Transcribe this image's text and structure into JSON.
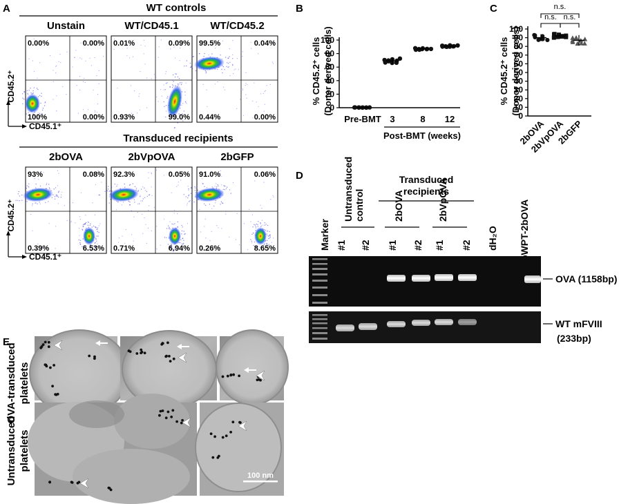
{
  "panels": {
    "A": {
      "label": "A",
      "group1_title": "WT controls",
      "group2_title": "Transduced recipients",
      "y_axis": "CD45.2⁺",
      "x_axis": "CD45.1⁺",
      "plots": [
        {
          "title": "Unstain",
          "q": [
            "0.00%",
            "0.00%",
            "100%",
            "0.00%"
          ],
          "pops": [
            "ll"
          ]
        },
        {
          "title": "WT/CD45.1",
          "q": [
            "0.01%",
            "0.09%",
            "0.93%",
            "99.0%"
          ],
          "pops": [
            "lr"
          ]
        },
        {
          "title": "WT/CD45.2",
          "q": [
            "99.5%",
            "0.04%",
            "0.44%",
            "0.00%"
          ],
          "pops": [
            "ul"
          ]
        },
        {
          "title": "2bOVA",
          "q": [
            "93%",
            "0.08%",
            "0.39%",
            "6.53%"
          ],
          "pops": [
            "ul",
            "lr"
          ]
        },
        {
          "title": "2bVpOVA",
          "q": [
            "92.3%",
            "0.05%",
            "0.71%",
            "6.94%"
          ],
          "pops": [
            "ul",
            "lr"
          ]
        },
        {
          "title": "2bGFP",
          "q": [
            "91.0%",
            "0.06%",
            "0.26%",
            "8.65%"
          ],
          "pops": [
            "ul",
            "lr"
          ]
        }
      ]
    },
    "B": {
      "label": "B"
    },
    "C": {
      "label": "C"
    },
    "D": {
      "label": "D",
      "marker": "Marker",
      "group_untransduced": "Untransduced control",
      "group_transduced": "Transduced recipients",
      "sub_2bova": "2bOVA",
      "sub_2bvpova": "2bVpOVA",
      "lanes": [
        "#1",
        "#2",
        "#1",
        "#2",
        "#1",
        "#2"
      ],
      "dh2o": "dH₂O",
      "pwpt": "pWPT-2bOVA",
      "band1": "OVA (1158bp)",
      "band2a": "WT mFVIII",
      "band2b": "(233bp)"
    },
    "E": {
      "label": "E",
      "row1_line1": "OVA-transduced",
      "row1_line2": "platelets",
      "row2_line1": "Untransduced",
      "row2_line2": "platelets",
      "scale_bar": "100 nm"
    }
  },
  "chart_data": [
    {
      "type": "scatter",
      "panel": "B",
      "ylabel": "% CD45.2⁺ cells (Donor derived cells)",
      "ylabel_line1": "% CD45.2⁺ cells",
      "ylabel_line2": "(Donor derived cells)",
      "xlabel": "Post-BMT (weeks)",
      "categories": [
        "Pre-BMT",
        "3",
        "8",
        "12"
      ],
      "yticks": [
        "0",
        "20",
        "40",
        "60",
        "80",
        "100"
      ],
      "ylim": [
        0,
        100
      ],
      "series": [
        {
          "values": [
            0.3,
            69,
            87,
            91
          ]
        }
      ],
      "error": [
        0.2,
        5,
        2,
        1.5
      ]
    },
    {
      "type": "scatter",
      "panel": "C",
      "ylabel": "% CD45.2⁺ cells (Donor derived cells)",
      "ylabel_line1": "% CD45.2⁺ cells",
      "ylabel_line2": "(Donor derived cells)",
      "categories": [
        "2bOVA",
        "2bVpOVA",
        "2bGFP"
      ],
      "yticks": [
        "0",
        "10",
        "20",
        "30",
        "40",
        "50",
        "60",
        "70",
        "80",
        "90",
        "100"
      ],
      "ylim": [
        0,
        100
      ],
      "series": [
        {
          "values": [
            90,
            92,
            87
          ]
        }
      ],
      "error": [
        4,
        3,
        6
      ],
      "annotations": [
        "n.s.",
        "n.s.",
        "n.s."
      ]
    }
  ]
}
